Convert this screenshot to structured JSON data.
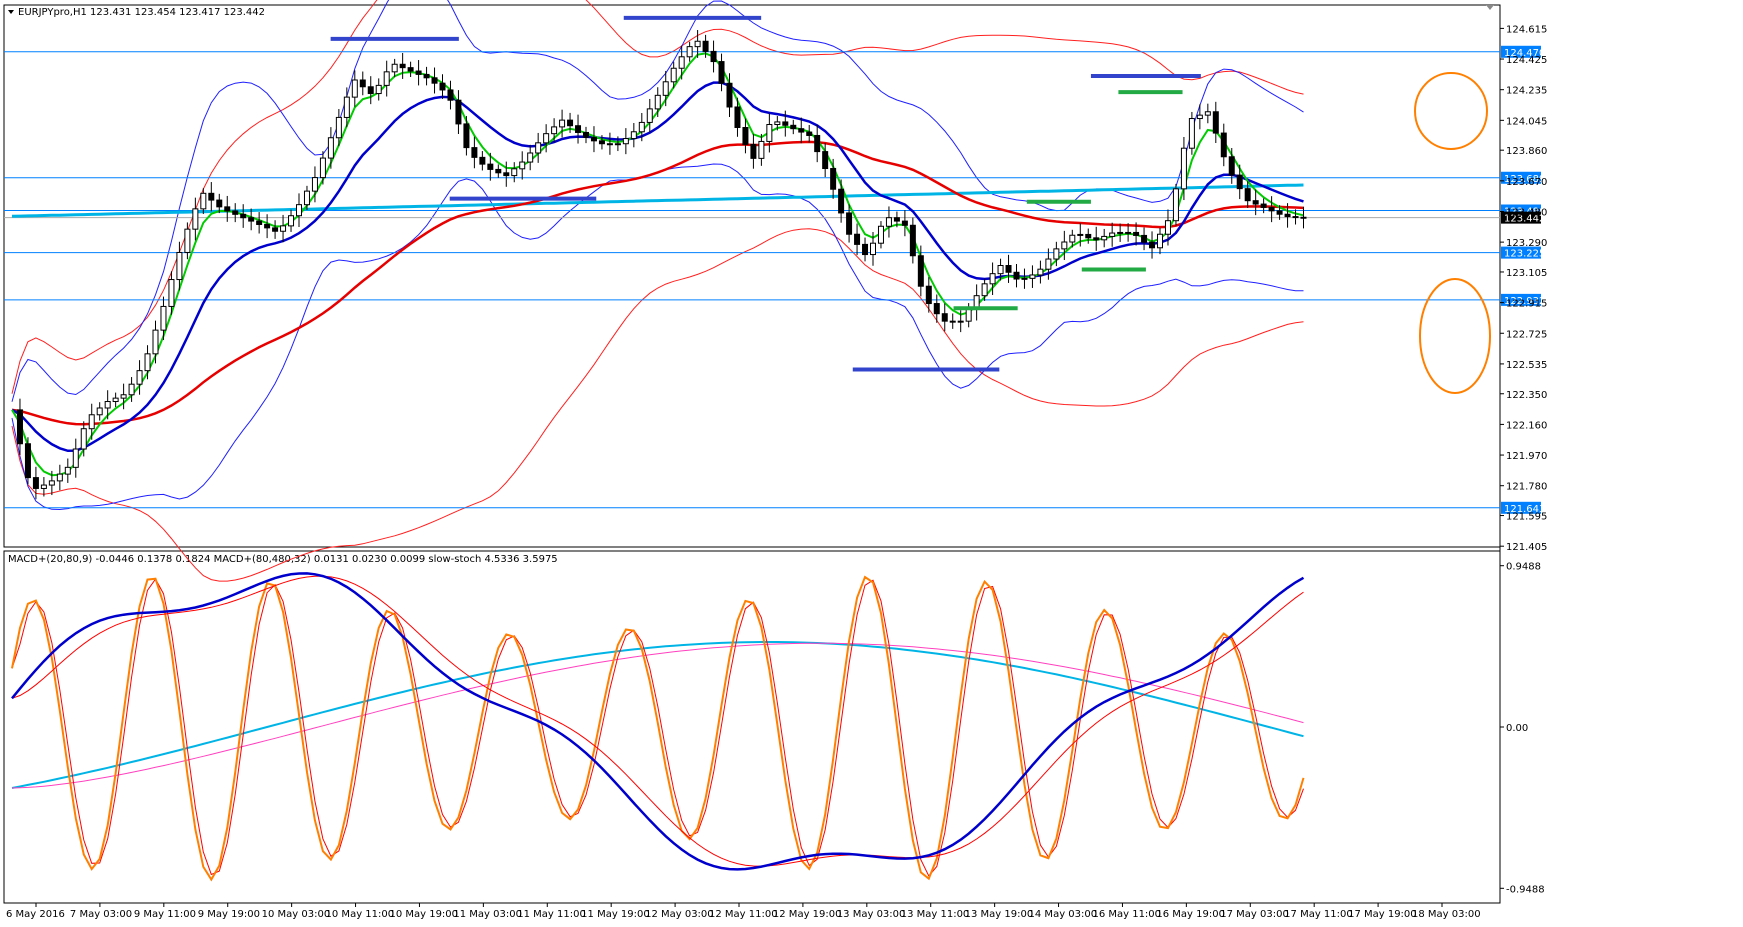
{
  "colors": {
    "background": "#ffffff",
    "frame": "#000000",
    "bull_candle": "#ffffff",
    "bear_candle": "#000000",
    "ema_fast": "#00cc00",
    "ema_mid": "#0000cc",
    "ema_slow": "#e60000",
    "ema_long": "#00b4e6",
    "bb_inner": "#2020ff",
    "bb_outer": "#ff2020",
    "hline": "#0080ff",
    "resistance": "#3344cc",
    "support_green": "#22aa44",
    "circle": "#ff8000",
    "macd_fast": "#0000cc",
    "macd_fast_signal": "#ff0000",
    "macd_slow": "#00b4e6",
    "macd_slow_signal": "#ff40c0",
    "stoch_k": "#ff8000",
    "stoch_d": "#ff0000"
  },
  "main_panel": {
    "header": "EURJPYpro,H1  123.431 123.454 123.417 123.442",
    "ylim": [
      121.4,
      124.76
    ],
    "price_ticks": [
      "124.615",
      "124.425",
      "124.235",
      "124.045",
      "123.860",
      "123.670",
      "123.480",
      "123.290",
      "123.105",
      "122.915",
      "122.725",
      "122.535",
      "122.350",
      "122.160",
      "121.970",
      "121.780",
      "121.595",
      "121.405"
    ],
    "horizontal_levels": [
      {
        "label": "124.470",
        "value": 124.47
      },
      {
        "label": "123.689",
        "value": 123.689
      },
      {
        "label": "123.486",
        "value": 123.486
      },
      {
        "label": "123.442",
        "value": 123.442
      },
      {
        "label": "123.225",
        "value": 123.225
      },
      {
        "label": "122.932",
        "value": 122.932
      },
      {
        "label": "121.643",
        "value": 121.643
      }
    ]
  },
  "sub_panel": {
    "header": "MACD+(20,80,9) -0.0446 0.1378 0.1824  MACD+(80,480,32) 0.0131 0.0230 0.0099  slow-stoch 4.5336 3.5975",
    "ticks": [
      {
        "label": "0.9488",
        "value": 0.9488
      },
      {
        "label": "0.00",
        "value": 0
      },
      {
        "label": "-0.9488",
        "value": -0.9488
      }
    ]
  },
  "time_labels": [
    "6 May 2016",
    "7 May 03:00",
    "9 May 11:00",
    "9 May 19:00",
    "10 May 03:00",
    "10 May 11:00",
    "10 May 19:00",
    "11 May 03:00",
    "11 May 11:00",
    "11 May 19:00",
    "12 May 03:00",
    "12 May 11:00",
    "12 May 19:00",
    "13 May 03:00",
    "13 May 11:00",
    "13 May 19:00",
    "14 May 03:00",
    "16 May 11:00",
    "16 May 19:00",
    "17 May 03:00",
    "17 May 11:00",
    "17 May 19:00",
    "18 May 03:00"
  ],
  "chart_data": {
    "type": "candlestick",
    "symbol_timeframe": "EURJPYpro,H1",
    "ylim": [
      121.4,
      124.76
    ],
    "x_range": [
      0,
      162
    ],
    "price_path_keypoints": [
      [
        0,
        122.25
      ],
      [
        2,
        121.75
      ],
      [
        4,
        121.8
      ],
      [
        6,
        121.9
      ],
      [
        8,
        122.2
      ],
      [
        10,
        122.3
      ],
      [
        12,
        122.35
      ],
      [
        14,
        122.55
      ],
      [
        16,
        122.9
      ],
      [
        18,
        123.3
      ],
      [
        20,
        123.6
      ],
      [
        22,
        123.5
      ],
      [
        24,
        123.45
      ],
      [
        26,
        123.4
      ],
      [
        28,
        123.35
      ],
      [
        30,
        123.5
      ],
      [
        32,
        123.7
      ],
      [
        34,
        124.0
      ],
      [
        36,
        124.3
      ],
      [
        38,
        124.2
      ],
      [
        40,
        124.4
      ],
      [
        42,
        124.35
      ],
      [
        44,
        124.3
      ],
      [
        46,
        124.2
      ],
      [
        48,
        123.85
      ],
      [
        50,
        123.75
      ],
      [
        52,
        123.7
      ],
      [
        54,
        123.8
      ],
      [
        56,
        123.95
      ],
      [
        58,
        124.05
      ],
      [
        60,
        123.95
      ],
      [
        62,
        123.9
      ],
      [
        64,
        123.9
      ],
      [
        66,
        124.0
      ],
      [
        68,
        124.2
      ],
      [
        70,
        124.4
      ],
      [
        72,
        124.55
      ],
      [
        74,
        124.4
      ],
      [
        76,
        124.05
      ],
      [
        78,
        123.8
      ],
      [
        80,
        124.05
      ],
      [
        82,
        124.0
      ],
      [
        84,
        123.95
      ],
      [
        86,
        123.7
      ],
      [
        88,
        123.35
      ],
      [
        90,
        123.2
      ],
      [
        92,
        123.45
      ],
      [
        94,
        123.4
      ],
      [
        96,
        122.95
      ],
      [
        98,
        122.8
      ],
      [
        100,
        122.8
      ],
      [
        102,
        123.0
      ],
      [
        104,
        123.15
      ],
      [
        106,
        123.05
      ],
      [
        108,
        123.1
      ],
      [
        110,
        123.25
      ],
      [
        112,
        123.35
      ],
      [
        114,
        123.3
      ],
      [
        116,
        123.35
      ],
      [
        118,
        123.35
      ],
      [
        120,
        123.25
      ],
      [
        122,
        123.45
      ],
      [
        124,
        124.05
      ],
      [
        126,
        124.1
      ],
      [
        128,
        123.75
      ],
      [
        130,
        123.55
      ],
      [
        132,
        123.5
      ],
      [
        134,
        123.45
      ],
      [
        136,
        123.44
      ]
    ],
    "support_resistance_marks": [
      {
        "color": "blue",
        "x": [
          35,
          49
        ],
        "y": 124.55
      },
      {
        "color": "blue",
        "x": [
          67,
          82
        ],
        "y": 124.68
      },
      {
        "color": "blue",
        "x": [
          48,
          64
        ],
        "y": 123.56
      },
      {
        "color": "blue",
        "x": [
          118,
          130
        ],
        "y": 124.32
      },
      {
        "color": "blue",
        "x": [
          92,
          108
        ],
        "y": 122.5
      },
      {
        "color": "green",
        "x": [
          121,
          128
        ],
        "y": 124.22
      },
      {
        "color": "green",
        "x": [
          111,
          118
        ],
        "y": 123.54
      },
      {
        "color": "green",
        "x": [
          117,
          124
        ],
        "y": 123.12
      },
      {
        "color": "green",
        "x": [
          103,
          110
        ],
        "y": 122.88
      }
    ],
    "oscillator_range": [
      -1.0,
      1.0
    ]
  }
}
